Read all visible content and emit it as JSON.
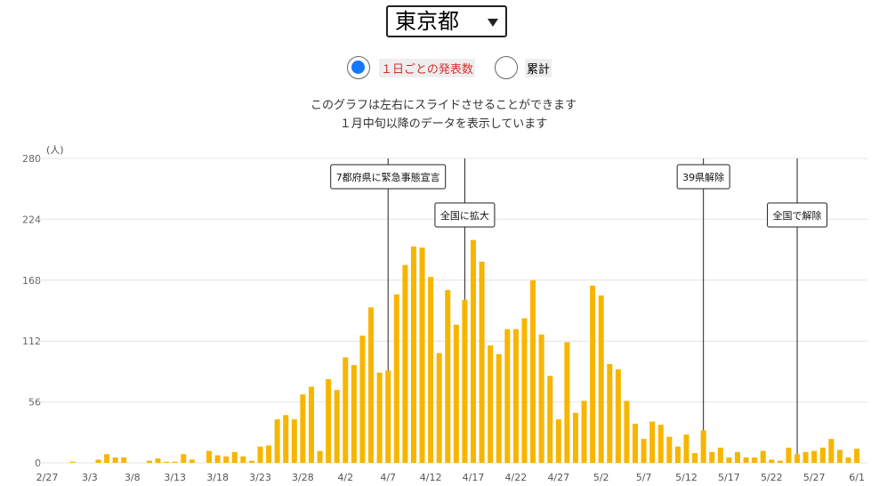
{
  "ui": {
    "prefecture": "東京都",
    "radio_daily": "１日ごとの発表数",
    "radio_total": "累計",
    "note1": "このグラフは左右にスライドさせることができます",
    "note2": "１月中旬以降のデータを表示しています"
  },
  "chart_data": {
    "type": "bar",
    "y_label": "(人)",
    "color": "#f7b500",
    "grid": true,
    "ylim": [
      0,
      280
    ],
    "yticks": [
      0,
      56,
      112,
      168,
      224,
      280
    ],
    "categories": [
      "2/27",
      null,
      null,
      null,
      null,
      "3/3",
      null,
      null,
      null,
      null,
      "3/8",
      null,
      null,
      null,
      null,
      "3/13",
      null,
      null,
      null,
      null,
      "3/18",
      null,
      null,
      null,
      null,
      "3/23",
      null,
      null,
      null,
      null,
      "3/28",
      null,
      null,
      null,
      null,
      "4/2",
      null,
      null,
      null,
      null,
      "4/7",
      null,
      null,
      null,
      null,
      "4/12",
      null,
      null,
      null,
      null,
      "4/17",
      null,
      null,
      null,
      null,
      "4/22",
      null,
      null,
      null,
      null,
      "4/27",
      null,
      null,
      null,
      null,
      "5/2",
      null,
      null,
      null,
      null,
      "5/7",
      null,
      null,
      null,
      null,
      "5/12",
      null,
      null,
      null,
      null,
      "5/17",
      null,
      null,
      null,
      null,
      "5/22",
      null,
      null,
      null,
      null,
      "5/27",
      null,
      null,
      null,
      null,
      "6/1"
    ],
    "values": [
      0,
      0,
      0,
      1,
      0,
      0,
      3,
      8,
      5,
      5,
      0,
      0,
      2,
      4,
      1,
      1,
      8,
      3,
      0,
      11,
      7,
      6,
      10,
      6,
      2,
      15,
      16,
      40,
      44,
      40,
      63,
      70,
      11,
      77,
      67,
      97,
      90,
      117,
      143,
      83,
      85,
      155,
      182,
      199,
      198,
      171,
      101,
      159,
      127,
      150,
      205,
      185,
      108,
      100,
      123,
      123,
      133,
      168,
      118,
      80,
      40,
      111,
      46,
      57,
      163,
      154,
      91,
      86,
      57,
      36,
      22,
      38,
      35,
      24,
      15,
      26,
      9,
      30,
      10,
      14,
      5,
      10,
      5,
      5,
      11,
      3,
      2,
      14,
      8,
      10,
      11,
      14,
      22,
      12,
      5,
      13
    ],
    "annotations": [
      {
        "text": "7都府県に緊急事態宣言",
        "index": 40
      },
      {
        "text": "全国に拡大",
        "index": 49
      },
      {
        "text": "39県解除",
        "index": 77
      },
      {
        "text": "全国で解除",
        "index": 88
      }
    ]
  }
}
